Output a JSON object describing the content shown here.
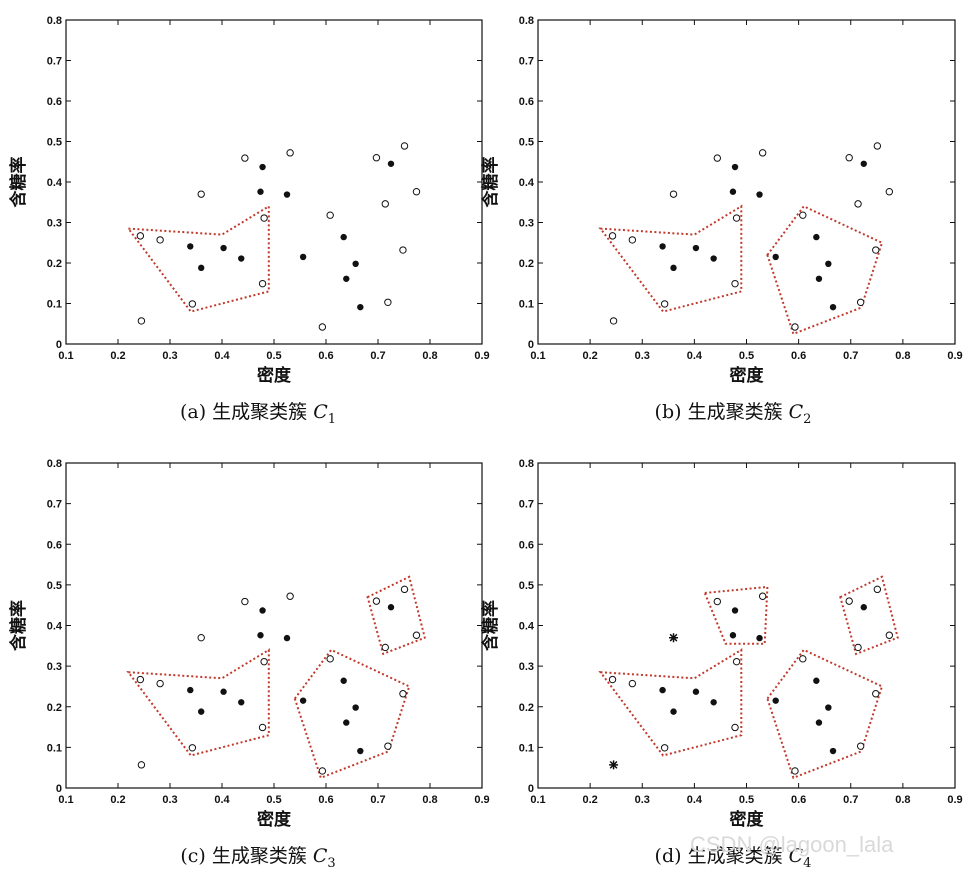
{
  "chart_data": [
    {
      "type": "scatter",
      "caption_prefix": "(a) 生成聚类簇",
      "caption_var": "C",
      "caption_sub": "1",
      "xlabel": "密度",
      "ylabel": "含糖率",
      "xlim": [
        0.1,
        0.9
      ],
      "ylim": [
        0,
        0.8
      ],
      "xticks": [
        "0.1",
        "0.2",
        "0.3",
        "0.4",
        "0.5",
        "0.6",
        "0.7",
        "0.8",
        "0.9"
      ],
      "yticks": [
        "0",
        "0.1",
        "0.2",
        "0.3",
        "0.4",
        "0.5",
        "0.6",
        "0.7",
        "0.8"
      ],
      "points": [
        {
          "x": 0.243,
          "y": 0.267,
          "m": "o"
        },
        {
          "x": 0.281,
          "y": 0.257,
          "m": "o"
        },
        {
          "x": 0.343,
          "y": 0.099,
          "m": "o"
        },
        {
          "x": 0.36,
          "y": 0.37,
          "m": "o"
        },
        {
          "x": 0.245,
          "y": 0.057,
          "m": "o"
        },
        {
          "x": 0.444,
          "y": 0.459,
          "m": "o"
        },
        {
          "x": 0.481,
          "y": 0.311,
          "m": "o"
        },
        {
          "x": 0.478,
          "y": 0.149,
          "m": "o"
        },
        {
          "x": 0.531,
          "y": 0.472,
          "m": "o"
        },
        {
          "x": 0.608,
          "y": 0.318,
          "m": "o"
        },
        {
          "x": 0.593,
          "y": 0.042,
          "m": "o"
        },
        {
          "x": 0.697,
          "y": 0.46,
          "m": "o"
        },
        {
          "x": 0.719,
          "y": 0.103,
          "m": "o"
        },
        {
          "x": 0.748,
          "y": 0.232,
          "m": "o"
        },
        {
          "x": 0.751,
          "y": 0.489,
          "m": "o"
        },
        {
          "x": 0.774,
          "y": 0.376,
          "m": "o"
        },
        {
          "x": 0.714,
          "y": 0.346,
          "m": "o"
        },
        {
          "x": 0.339,
          "y": 0.241,
          "m": "dot"
        },
        {
          "x": 0.36,
          "y": 0.188,
          "m": "dot"
        },
        {
          "x": 0.403,
          "y": 0.237,
          "m": "dot"
        },
        {
          "x": 0.437,
          "y": 0.211,
          "m": "dot"
        },
        {
          "x": 0.474,
          "y": 0.376,
          "m": "dot"
        },
        {
          "x": 0.478,
          "y": 0.437,
          "m": "dot"
        },
        {
          "x": 0.525,
          "y": 0.369,
          "m": "dot"
        },
        {
          "x": 0.556,
          "y": 0.215,
          "m": "dot"
        },
        {
          "x": 0.634,
          "y": 0.264,
          "m": "dot"
        },
        {
          "x": 0.639,
          "y": 0.161,
          "m": "dot"
        },
        {
          "x": 0.657,
          "y": 0.198,
          "m": "dot"
        },
        {
          "x": 0.666,
          "y": 0.091,
          "m": "dot"
        },
        {
          "x": 0.725,
          "y": 0.445,
          "m": "dot"
        }
      ],
      "clusters": [
        [
          [
            0.22,
            0.285
          ],
          [
            0.4,
            0.27
          ],
          [
            0.49,
            0.34
          ],
          [
            0.49,
            0.13
          ],
          [
            0.34,
            0.08
          ]
        ]
      ]
    },
    {
      "type": "scatter",
      "caption_prefix": "(b) 生成聚类簇",
      "caption_var": "C",
      "caption_sub": "2",
      "xlabel": "密度",
      "ylabel": "含糖率",
      "xlim": [
        0.1,
        0.9
      ],
      "ylim": [
        0,
        0.8
      ],
      "xticks": [
        "0.1",
        "0.2",
        "0.3",
        "0.4",
        "0.5",
        "0.6",
        "0.7",
        "0.8",
        "0.9"
      ],
      "yticks": [
        "0",
        "0.1",
        "0.2",
        "0.3",
        "0.4",
        "0.5",
        "0.6",
        "0.7",
        "0.8"
      ],
      "points": [
        {
          "x": 0.243,
          "y": 0.267,
          "m": "o"
        },
        {
          "x": 0.281,
          "y": 0.257,
          "m": "o"
        },
        {
          "x": 0.343,
          "y": 0.099,
          "m": "o"
        },
        {
          "x": 0.36,
          "y": 0.37,
          "m": "o"
        },
        {
          "x": 0.245,
          "y": 0.057,
          "m": "o"
        },
        {
          "x": 0.444,
          "y": 0.459,
          "m": "o"
        },
        {
          "x": 0.481,
          "y": 0.311,
          "m": "o"
        },
        {
          "x": 0.478,
          "y": 0.149,
          "m": "o"
        },
        {
          "x": 0.531,
          "y": 0.472,
          "m": "o"
        },
        {
          "x": 0.608,
          "y": 0.318,
          "m": "o"
        },
        {
          "x": 0.593,
          "y": 0.042,
          "m": "o"
        },
        {
          "x": 0.697,
          "y": 0.46,
          "m": "o"
        },
        {
          "x": 0.719,
          "y": 0.103,
          "m": "o"
        },
        {
          "x": 0.748,
          "y": 0.232,
          "m": "o"
        },
        {
          "x": 0.751,
          "y": 0.489,
          "m": "o"
        },
        {
          "x": 0.774,
          "y": 0.376,
          "m": "o"
        },
        {
          "x": 0.714,
          "y": 0.346,
          "m": "o"
        },
        {
          "x": 0.339,
          "y": 0.241,
          "m": "dot"
        },
        {
          "x": 0.36,
          "y": 0.188,
          "m": "dot"
        },
        {
          "x": 0.403,
          "y": 0.237,
          "m": "dot"
        },
        {
          "x": 0.437,
          "y": 0.211,
          "m": "dot"
        },
        {
          "x": 0.474,
          "y": 0.376,
          "m": "dot"
        },
        {
          "x": 0.478,
          "y": 0.437,
          "m": "dot"
        },
        {
          "x": 0.525,
          "y": 0.369,
          "m": "dot"
        },
        {
          "x": 0.556,
          "y": 0.215,
          "m": "dot"
        },
        {
          "x": 0.634,
          "y": 0.264,
          "m": "dot"
        },
        {
          "x": 0.639,
          "y": 0.161,
          "m": "dot"
        },
        {
          "x": 0.657,
          "y": 0.198,
          "m": "dot"
        },
        {
          "x": 0.666,
          "y": 0.091,
          "m": "dot"
        },
        {
          "x": 0.725,
          "y": 0.445,
          "m": "dot"
        }
      ],
      "clusters": [
        [
          [
            0.22,
            0.285
          ],
          [
            0.4,
            0.27
          ],
          [
            0.49,
            0.34
          ],
          [
            0.49,
            0.13
          ],
          [
            0.34,
            0.08
          ]
        ],
        [
          [
            0.54,
            0.22
          ],
          [
            0.61,
            0.34
          ],
          [
            0.76,
            0.25
          ],
          [
            0.72,
            0.09
          ],
          [
            0.59,
            0.025
          ]
        ]
      ]
    },
    {
      "type": "scatter",
      "caption_prefix": "(c) 生成聚类簇",
      "caption_var": "C",
      "caption_sub": "3",
      "xlabel": "密度",
      "ylabel": "含糖率",
      "xlim": [
        0.1,
        0.9
      ],
      "ylim": [
        0,
        0.8
      ],
      "xticks": [
        "0.1",
        "0.2",
        "0.3",
        "0.4",
        "0.5",
        "0.6",
        "0.7",
        "0.8",
        "0.9"
      ],
      "yticks": [
        "0",
        "0.1",
        "0.2",
        "0.3",
        "0.4",
        "0.5",
        "0.6",
        "0.7",
        "0.8"
      ],
      "points": [
        {
          "x": 0.243,
          "y": 0.267,
          "m": "o"
        },
        {
          "x": 0.281,
          "y": 0.257,
          "m": "o"
        },
        {
          "x": 0.343,
          "y": 0.099,
          "m": "o"
        },
        {
          "x": 0.36,
          "y": 0.37,
          "m": "o"
        },
        {
          "x": 0.245,
          "y": 0.057,
          "m": "o"
        },
        {
          "x": 0.444,
          "y": 0.459,
          "m": "o"
        },
        {
          "x": 0.481,
          "y": 0.311,
          "m": "o"
        },
        {
          "x": 0.478,
          "y": 0.149,
          "m": "o"
        },
        {
          "x": 0.531,
          "y": 0.472,
          "m": "o"
        },
        {
          "x": 0.608,
          "y": 0.318,
          "m": "o"
        },
        {
          "x": 0.593,
          "y": 0.042,
          "m": "o"
        },
        {
          "x": 0.697,
          "y": 0.46,
          "m": "o"
        },
        {
          "x": 0.719,
          "y": 0.103,
          "m": "o"
        },
        {
          "x": 0.748,
          "y": 0.232,
          "m": "o"
        },
        {
          "x": 0.751,
          "y": 0.489,
          "m": "o"
        },
        {
          "x": 0.774,
          "y": 0.376,
          "m": "o"
        },
        {
          "x": 0.714,
          "y": 0.346,
          "m": "o"
        },
        {
          "x": 0.339,
          "y": 0.241,
          "m": "dot"
        },
        {
          "x": 0.36,
          "y": 0.188,
          "m": "dot"
        },
        {
          "x": 0.403,
          "y": 0.237,
          "m": "dot"
        },
        {
          "x": 0.437,
          "y": 0.211,
          "m": "dot"
        },
        {
          "x": 0.474,
          "y": 0.376,
          "m": "dot"
        },
        {
          "x": 0.478,
          "y": 0.437,
          "m": "dot"
        },
        {
          "x": 0.525,
          "y": 0.369,
          "m": "dot"
        },
        {
          "x": 0.556,
          "y": 0.215,
          "m": "dot"
        },
        {
          "x": 0.634,
          "y": 0.264,
          "m": "dot"
        },
        {
          "x": 0.639,
          "y": 0.161,
          "m": "dot"
        },
        {
          "x": 0.657,
          "y": 0.198,
          "m": "dot"
        },
        {
          "x": 0.666,
          "y": 0.091,
          "m": "dot"
        },
        {
          "x": 0.725,
          "y": 0.445,
          "m": "dot"
        }
      ],
      "clusters": [
        [
          [
            0.22,
            0.285
          ],
          [
            0.4,
            0.27
          ],
          [
            0.49,
            0.34
          ],
          [
            0.49,
            0.13
          ],
          [
            0.34,
            0.08
          ]
        ],
        [
          [
            0.54,
            0.22
          ],
          [
            0.61,
            0.34
          ],
          [
            0.76,
            0.25
          ],
          [
            0.72,
            0.09
          ],
          [
            0.59,
            0.025
          ]
        ],
        [
          [
            0.68,
            0.47
          ],
          [
            0.76,
            0.52
          ],
          [
            0.79,
            0.37
          ],
          [
            0.71,
            0.33
          ]
        ]
      ]
    },
    {
      "type": "scatter",
      "caption_prefix": "(d) 生成聚类簇",
      "caption_var": "C",
      "caption_sub": "4",
      "xlabel": "密度",
      "ylabel": "含糖率",
      "xlim": [
        0.1,
        0.9
      ],
      "ylim": [
        0,
        0.8
      ],
      "xticks": [
        "0.1",
        "0.2",
        "0.3",
        "0.4",
        "0.5",
        "0.6",
        "0.7",
        "0.8",
        "0.9"
      ],
      "yticks": [
        "0",
        "0.1",
        "0.2",
        "0.3",
        "0.4",
        "0.5",
        "0.6",
        "0.7",
        "0.8"
      ],
      "points": [
        {
          "x": 0.243,
          "y": 0.267,
          "m": "o"
        },
        {
          "x": 0.281,
          "y": 0.257,
          "m": "o"
        },
        {
          "x": 0.343,
          "y": 0.099,
          "m": "o"
        },
        {
          "x": 0.36,
          "y": 0.37,
          "m": "star"
        },
        {
          "x": 0.245,
          "y": 0.057,
          "m": "star"
        },
        {
          "x": 0.444,
          "y": 0.459,
          "m": "o"
        },
        {
          "x": 0.481,
          "y": 0.311,
          "m": "o"
        },
        {
          "x": 0.478,
          "y": 0.149,
          "m": "o"
        },
        {
          "x": 0.531,
          "y": 0.472,
          "m": "o"
        },
        {
          "x": 0.608,
          "y": 0.318,
          "m": "o"
        },
        {
          "x": 0.593,
          "y": 0.042,
          "m": "o"
        },
        {
          "x": 0.697,
          "y": 0.46,
          "m": "o"
        },
        {
          "x": 0.719,
          "y": 0.103,
          "m": "o"
        },
        {
          "x": 0.748,
          "y": 0.232,
          "m": "o"
        },
        {
          "x": 0.751,
          "y": 0.489,
          "m": "o"
        },
        {
          "x": 0.774,
          "y": 0.376,
          "m": "o"
        },
        {
          "x": 0.714,
          "y": 0.346,
          "m": "o"
        },
        {
          "x": 0.339,
          "y": 0.241,
          "m": "dot"
        },
        {
          "x": 0.36,
          "y": 0.188,
          "m": "dot"
        },
        {
          "x": 0.403,
          "y": 0.237,
          "m": "dot"
        },
        {
          "x": 0.437,
          "y": 0.211,
          "m": "dot"
        },
        {
          "x": 0.474,
          "y": 0.376,
          "m": "dot"
        },
        {
          "x": 0.478,
          "y": 0.437,
          "m": "dot"
        },
        {
          "x": 0.525,
          "y": 0.369,
          "m": "dot"
        },
        {
          "x": 0.556,
          "y": 0.215,
          "m": "dot"
        },
        {
          "x": 0.634,
          "y": 0.264,
          "m": "dot"
        },
        {
          "x": 0.639,
          "y": 0.161,
          "m": "dot"
        },
        {
          "x": 0.657,
          "y": 0.198,
          "m": "dot"
        },
        {
          "x": 0.666,
          "y": 0.091,
          "m": "dot"
        },
        {
          "x": 0.725,
          "y": 0.445,
          "m": "dot"
        }
      ],
      "clusters": [
        [
          [
            0.22,
            0.285
          ],
          [
            0.4,
            0.27
          ],
          [
            0.49,
            0.34
          ],
          [
            0.49,
            0.13
          ],
          [
            0.34,
            0.08
          ]
        ],
        [
          [
            0.54,
            0.22
          ],
          [
            0.61,
            0.34
          ],
          [
            0.76,
            0.25
          ],
          [
            0.72,
            0.09
          ],
          [
            0.59,
            0.025
          ]
        ],
        [
          [
            0.68,
            0.47
          ],
          [
            0.76,
            0.52
          ],
          [
            0.79,
            0.37
          ],
          [
            0.71,
            0.33
          ]
        ],
        [
          [
            0.42,
            0.48
          ],
          [
            0.54,
            0.495
          ],
          [
            0.535,
            0.355
          ],
          [
            0.46,
            0.355
          ]
        ]
      ]
    }
  ],
  "style": {
    "cluster_color": "#c0392b",
    "marker_color": "#111111",
    "axis_color": "#111111"
  },
  "watermark": "CSDN @lagoon_lala"
}
